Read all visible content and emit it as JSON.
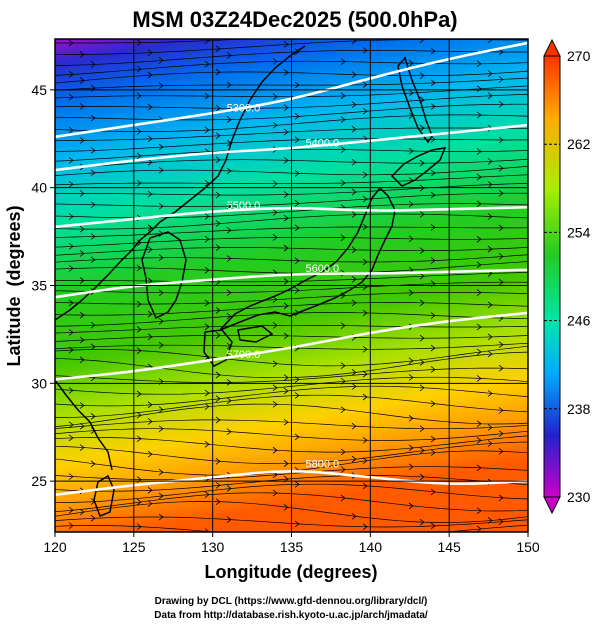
{
  "title": "MSM 03Z24Dec2025 (500.0hPa)",
  "xlabel": "Longitude (degrees)",
  "ylabel": "Latitude  (degrees)",
  "credit_line1": "Drawing by DCL (https://www.gfd-dennou.org/library/dcl/)",
  "credit_line2": "Data from http://database.rish.kyoto-u.ac.jp/arch/jmadata/",
  "chart_data": {
    "type": "heatmap",
    "x_range": [
      120,
      150
    ],
    "y_range": [
      22.4,
      47.6
    ],
    "x_ticks": [
      "120",
      "125",
      "130",
      "135",
      "140",
      "145",
      "150"
    ],
    "y_ticks": [
      "25",
      "30",
      "35",
      "40",
      "45"
    ],
    "grid": true,
    "colorbar": {
      "range": [
        230,
        270
      ],
      "ticks": [
        "270",
        "262",
        "254",
        "246",
        "238",
        "230"
      ],
      "colors": [
        "#cc00cc",
        "#2222cc",
        "#00aaff",
        "#00e6aa",
        "#22cc22",
        "#aaee00",
        "#ffaa00",
        "#ff3300"
      ]
    },
    "contours": [
      {
        "label": "5300.0",
        "lat_at_lon": [
          [
            120,
            42.6
          ],
          [
            125,
            43.2
          ],
          [
            130,
            43.8
          ],
          [
            135,
            44.5
          ],
          [
            140,
            45.6
          ],
          [
            145,
            46.6
          ],
          [
            150,
            47.4
          ]
        ]
      },
      {
        "label": "5400.0",
        "lat_at_lon": [
          [
            120,
            40.9
          ],
          [
            125,
            41.4
          ],
          [
            130,
            41.8
          ],
          [
            135,
            42.0
          ],
          [
            140,
            42.4
          ],
          [
            145,
            42.8
          ],
          [
            150,
            43.2
          ]
        ]
      },
      {
        "label": "5500.0",
        "lat_at_lon": [
          [
            120,
            38.0
          ],
          [
            125,
            38.4
          ],
          [
            130,
            38.8
          ],
          [
            135,
            39.0
          ],
          [
            140,
            38.8
          ],
          [
            145,
            38.9
          ],
          [
            150,
            39.0
          ]
        ]
      },
      {
        "label": "5600.0",
        "lat_at_lon": [
          [
            120,
            34.4
          ],
          [
            125,
            35.0
          ],
          [
            130,
            35.3
          ],
          [
            135,
            35.6
          ],
          [
            140,
            35.6
          ],
          [
            145,
            35.7
          ],
          [
            150,
            35.8
          ]
        ]
      },
      {
        "label": "5700.0",
        "lat_at_lon": [
          [
            120,
            30.2
          ],
          [
            125,
            30.6
          ],
          [
            130,
            31.2
          ],
          [
            135,
            31.8
          ],
          [
            140,
            32.6
          ],
          [
            145,
            33.2
          ],
          [
            150,
            33.6
          ]
        ]
      },
      {
        "label": "5800.0",
        "lat_at_lon": [
          [
            120,
            24.3
          ],
          [
            125,
            24.8
          ],
          [
            130,
            25.2
          ],
          [
            135,
            25.6
          ],
          [
            140,
            25.2
          ],
          [
            145,
            24.8
          ],
          [
            150,
            25.0
          ]
        ]
      }
    ]
  }
}
